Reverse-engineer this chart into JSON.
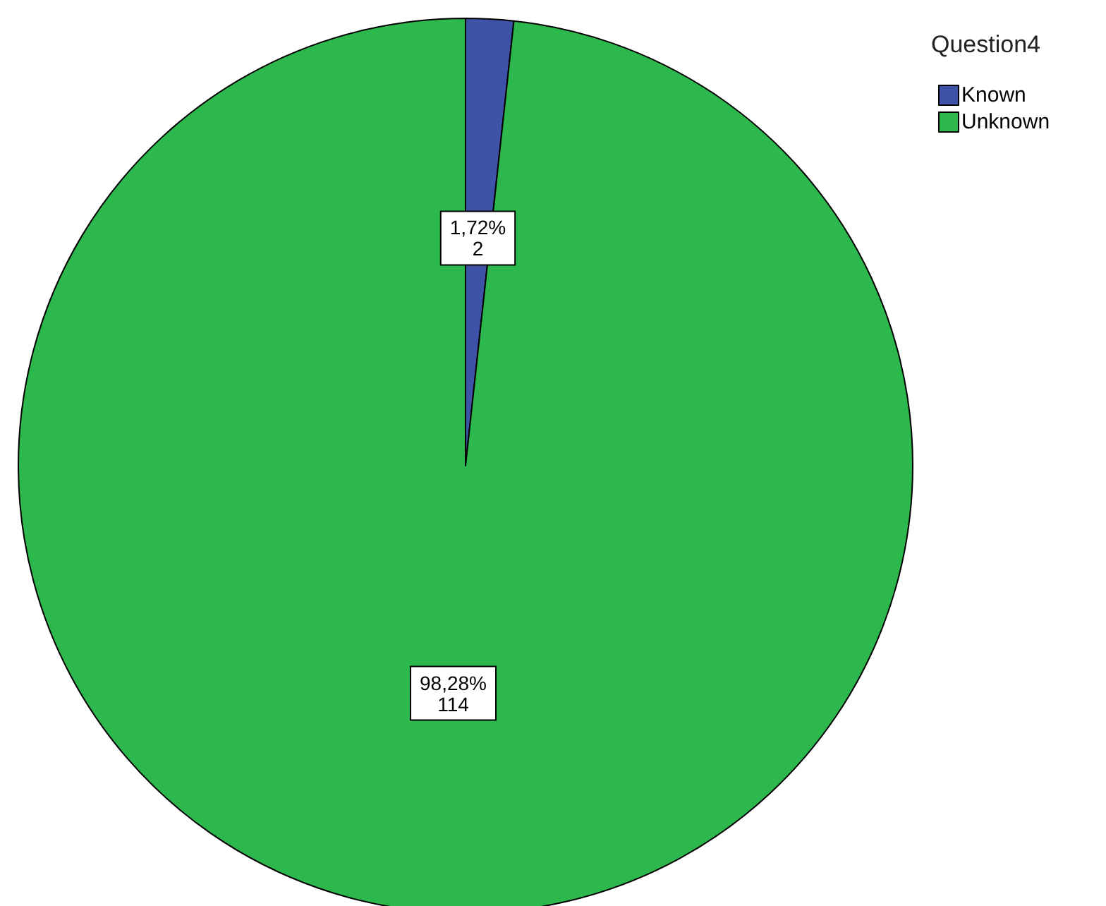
{
  "chart_data": {
    "type": "pie",
    "legend_title": "Question4",
    "categories": [
      "Known",
      "Unknown"
    ],
    "values": [
      2,
      114
    ],
    "colors": [
      "#3e53a8",
      "#2db84d"
    ],
    "value_labels": [
      "1,72%\n2",
      "98,28%\n114"
    ],
    "legend": "top right"
  }
}
